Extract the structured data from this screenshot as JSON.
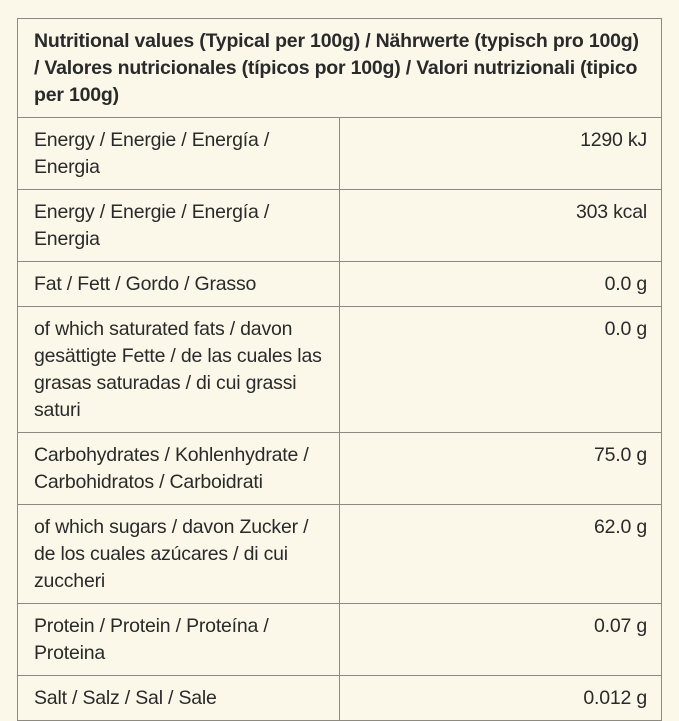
{
  "table": {
    "header": "Nutritional values (Typical per 100g) / Nährwerte (typisch pro 100g) / Valores nutricionales (típicos por 100g) / Valori nutrizionali (tipico per 100g)",
    "rows": [
      {
        "label": "Energy / Energie / Energía / Energia",
        "value": "1290 kJ"
      },
      {
        "label": "Energy / Energie / Energía / Energia",
        "value": "303 kcal"
      },
      {
        "label": "Fat / Fett / Gordo / Grasso",
        "value": "0.0 g"
      },
      {
        "label": "of which saturated fats / davon gesättigte Fette / de las cuales las grasas saturadas / di cui grassi saturi",
        "value": "0.0 g"
      },
      {
        "label": "Carbohydrates / Kohlenhydrate / Carbohidratos / Carboidrati",
        "value": "75.0 g"
      },
      {
        "label": "of which sugars / davon Zucker / de los cuales azúcares / di cui zuccheri",
        "value": "62.0 g"
      },
      {
        "label": "Protein / Protein / Proteína / Proteina",
        "value": "0.07 g"
      },
      {
        "label": "Salt / Salz / Sal / Sale",
        "value": "0.012 g"
      }
    ]
  },
  "colors": {
    "background": "#fbf8ea",
    "border": "#8e8a80",
    "text": "#2a2a2a"
  }
}
